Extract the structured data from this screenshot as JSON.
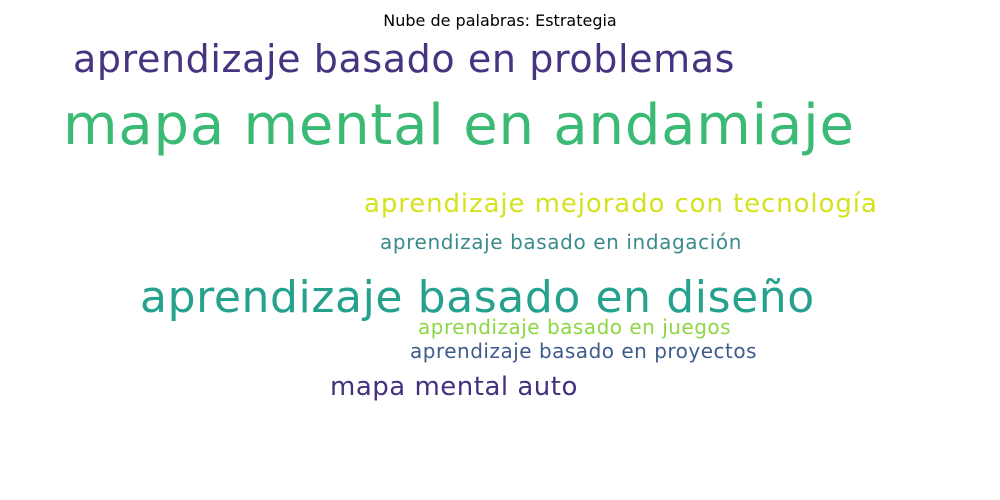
{
  "chart_data": {
    "type": "wordcloud",
    "title": "Nube de palabras: Estrategia",
    "words": [
      {
        "text": "aprendizaje basado en problemas",
        "weight": 0.68,
        "color": "#463480"
      },
      {
        "text": "mapa mental en andamiaje",
        "weight": 1.0,
        "color": "#3bba75"
      },
      {
        "text": "aprendizaje mejorado con tecnología",
        "weight": 0.46,
        "color": "#d6e21f"
      },
      {
        "text": "aprendizaje basado en indagación",
        "weight": 0.36,
        "color": "#3b8b8c"
      },
      {
        "text": "aprendizaje basado en diseño",
        "weight": 0.79,
        "color": "#25a18d"
      },
      {
        "text": "aprendizaje basado en juegos",
        "weight": 0.36,
        "color": "#8dd645"
      },
      {
        "text": "aprendizaje basado en proyectos",
        "weight": 0.36,
        "color": "#3e5c8b"
      },
      {
        "text": "mapa mental auto",
        "weight": 0.46,
        "color": "#45307f"
      }
    ]
  }
}
